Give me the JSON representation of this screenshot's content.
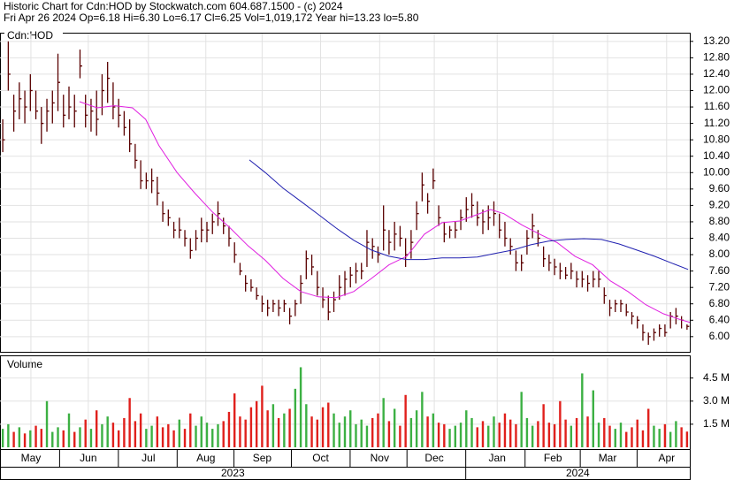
{
  "chart_data": {
    "type": "hlc",
    "title": "Historic Chart for Cdn:HOD by Stockwatch.com 604.687.1500 - (c) 2024",
    "subtitle": "Fri Apr 26 2024  Op=6.18  Hi=6.30  Lo=6.17  Cl=6.25  Vol=1,019,172  Year hi=13.23  lo=5.80",
    "symbol_label": "Cdn:HOD",
    "volume_label": "Volume",
    "bar_color": "#5a0000",
    "up_color": "#3cb043",
    "down_color": "#e0201c",
    "xlim": [
      -0.5,
      124.5
    ],
    "xticks": [
      {
        "value": 5.1,
        "label": "May"
      },
      {
        "value": 15.5,
        "label": "Jun"
      },
      {
        "value": 26.4,
        "label": "Jul"
      },
      {
        "value": 36.8,
        "label": "Aug"
      },
      {
        "value": 47,
        "label": "Sep"
      },
      {
        "value": 57.6,
        "label": "Oct"
      },
      {
        "value": 68.3,
        "label": "Nov"
      },
      {
        "value": 78.2,
        "label": "Dec"
      },
      {
        "value": 89.6,
        "label": "Jan"
      },
      {
        "value": 99.7,
        "label": "Feb"
      },
      {
        "value": 109.6,
        "label": "Mar"
      },
      {
        "value": 120.3,
        "label": "Apr"
      }
    ],
    "year_labels": [
      "2023",
      "2024"
    ],
    "ylim": [
      5.63,
      13.39
    ],
    "yticks": [
      {
        "value": 6,
        "label": "6.00"
      },
      {
        "value": 6.4,
        "label": "6.40"
      },
      {
        "value": 6.8,
        "label": "6.80"
      },
      {
        "value": 7.2,
        "label": "7.20"
      },
      {
        "value": 7.6,
        "label": "7.60"
      },
      {
        "value": 8,
        "label": "8.00"
      },
      {
        "value": 8.4,
        "label": "8.40"
      },
      {
        "value": 8.8,
        "label": "8.80"
      },
      {
        "value": 9.2,
        "label": "9.20"
      },
      {
        "value": 9.6,
        "label": "9.60"
      },
      {
        "value": 10,
        "label": "10.00"
      },
      {
        "value": 10.4,
        "label": "10.40"
      },
      {
        "value": 10.8,
        "label": "10.80"
      },
      {
        "value": 11.2,
        "label": "11.20"
      },
      {
        "value": 11.6,
        "label": "11.60"
      },
      {
        "value": 12,
        "label": "12.00"
      },
      {
        "value": 12.4,
        "label": "12.40"
      },
      {
        "value": 12.8,
        "label": "12.80"
      },
      {
        "value": 13.2,
        "label": "13.20"
      }
    ],
    "high": [
      11.3,
      13.2,
      11.9,
      12.2,
      12.0,
      12.4,
      12.0,
      11.6,
      11.8,
      12.0,
      12.9,
      11.9,
      12.1,
      11.9,
      13.0,
      11.9,
      11.8,
      12.0,
      12.4,
      12.7,
      12.2,
      11.8,
      11.5,
      11.3,
      10.7,
      10.3,
      10.0,
      10.1,
      9.9,
      9.3,
      9.1,
      8.8,
      8.9,
      8.6,
      8.4,
      8.6,
      8.9,
      8.8,
      9.0,
      9.3,
      8.9,
      8.7,
      8.3,
      7.8,
      7.5,
      7.4,
      7.2,
      7.0,
      6.9,
      6.9,
      6.9,
      6.9,
      6.7,
      6.9,
      7.5,
      8.1,
      8.0,
      7.6,
      7.2,
      7.0,
      7.1,
      7.5,
      7.6,
      7.7,
      7.8,
      7.8,
      8.6,
      8.4,
      8.2,
      9.2,
      8.6,
      8.8,
      8.7,
      8.4,
      8.6,
      9.3,
      10.0,
      9.5,
      10.1,
      9.2,
      8.8,
      8.7,
      8.8,
      9.1,
      9.4,
      9.5,
      9.3,
      9.1,
      9.2,
      9.3,
      9.0,
      8.8,
      8.4,
      8.1,
      8.0,
      8.6,
      9.0,
      8.6,
      8.2,
      8.0,
      7.9,
      7.8,
      7.7,
      7.8,
      7.6,
      7.6,
      7.5,
      7.6,
      7.6,
      7.2,
      6.9,
      6.9,
      6.9,
      6.8,
      6.6,
      6.5,
      6.3,
      6.1,
      6.2,
      6.3,
      6.3,
      6.6,
      6.7,
      6.5,
      6.3
    ],
    "low": [
      10.5,
      12.0,
      11.0,
      11.3,
      11.2,
      11.5,
      11.3,
      10.7,
      11.0,
      11.2,
      11.5,
      11.1,
      11.3,
      11.1,
      12.3,
      11.1,
      11.0,
      10.9,
      11.4,
      11.7,
      11.3,
      11.1,
      10.9,
      10.5,
      10.1,
      9.6,
      9.6,
      9.5,
      9.2,
      8.8,
      8.7,
      8.4,
      8.4,
      8.2,
      7.9,
      8.1,
      8.3,
      8.3,
      8.5,
      8.7,
      8.5,
      8.2,
      7.8,
      7.5,
      7.1,
      7.1,
      6.9,
      6.6,
      6.5,
      6.6,
      6.5,
      6.6,
      6.3,
      6.5,
      6.8,
      7.4,
      7.5,
      7.0,
      6.7,
      6.4,
      6.6,
      6.9,
      7.0,
      7.2,
      7.3,
      7.4,
      7.7,
      7.9,
      7.8,
      8.1,
      8.0,
      8.1,
      8.2,
      7.7,
      7.9,
      8.6,
      9.3,
      9.0,
      9.6,
      8.7,
      8.3,
      8.4,
      8.4,
      8.6,
      8.8,
      8.9,
      8.7,
      8.5,
      8.6,
      8.7,
      8.4,
      8.2,
      8.0,
      7.6,
      7.6,
      8.0,
      8.4,
      8.2,
      7.7,
      7.6,
      7.5,
      7.4,
      7.4,
      7.4,
      7.2,
      7.2,
      7.1,
      7.2,
      7.2,
      6.8,
      6.5,
      6.6,
      6.6,
      6.5,
      6.3,
      6.2,
      5.9,
      5.8,
      5.9,
      6.0,
      6.0,
      6.2,
      6.3,
      6.2,
      6.17
    ],
    "close": [
      10.8,
      12.4,
      11.5,
      11.8,
      11.6,
      12.0,
      11.5,
      11.2,
      11.5,
      11.7,
      12.2,
      11.4,
      11.6,
      11.5,
      12.6,
      11.4,
      11.5,
      11.3,
      12.0,
      12.3,
      11.6,
      11.4,
      11.1,
      10.7,
      10.3,
      9.8,
      9.8,
      9.8,
      9.5,
      9.0,
      8.9,
      8.6,
      8.6,
      8.4,
      8.1,
      8.4,
      8.6,
      8.6,
      8.8,
      9.0,
      8.7,
      8.4,
      8.0,
      7.6,
      7.3,
      7.2,
      7.0,
      6.8,
      6.7,
      6.8,
      6.7,
      6.8,
      6.5,
      6.8,
      7.3,
      7.9,
      7.7,
      7.2,
      6.9,
      6.6,
      6.9,
      7.2,
      7.4,
      7.5,
      7.6,
      7.6,
      8.3,
      8.2,
      8.0,
      8.6,
      8.3,
      8.5,
      8.4,
      8.0,
      8.3,
      9.0,
      9.7,
      9.3,
      9.8,
      8.9,
      8.5,
      8.6,
      8.6,
      8.9,
      9.1,
      9.2,
      8.9,
      8.8,
      8.9,
      9.0,
      8.6,
      8.4,
      8.2,
      7.8,
      7.8,
      8.4,
      8.7,
      8.4,
      7.9,
      7.8,
      7.7,
      7.6,
      7.5,
      7.6,
      7.4,
      7.4,
      7.3,
      7.4,
      7.4,
      7.0,
      6.7,
      6.8,
      6.8,
      6.6,
      6.5,
      6.4,
      6.1,
      6.0,
      6.1,
      6.2,
      6.1,
      6.5,
      6.5,
      6.4,
      6.25
    ],
    "moving_averages": [
      {
        "color": "#e020e0",
        "x": [
          13.9,
          17.1,
          20.3,
          23.5,
          25.9,
          28.3,
          31.6,
          34.8,
          38,
          41.2,
          44.4,
          47.6,
          50.8,
          54,
          57.2,
          60.4,
          63.6,
          66.8,
          70,
          73.2,
          76.4,
          79.6,
          82.8,
          86,
          88.4,
          90.8,
          94.1,
          97.3,
          100.5,
          103.7,
          106.9,
          110.1,
          113.3,
          116.5,
          119.7,
          122.9,
          124.5
        ],
        "values": [
          11.73,
          11.58,
          11.63,
          11.58,
          11.3,
          10.66,
          10.0,
          9.5,
          9.04,
          8.65,
          8.22,
          7.86,
          7.42,
          7.1,
          6.97,
          6.95,
          7.1,
          7.42,
          7.75,
          7.96,
          8.5,
          8.78,
          8.82,
          8.98,
          9.1,
          9.0,
          8.72,
          8.5,
          8.29,
          7.96,
          7.75,
          7.36,
          7.1,
          6.78,
          6.56,
          6.41,
          6.35
        ]
      },
      {
        "color": "#2020b0",
        "x": [
          44.7,
          47.6,
          50.8,
          54,
          57.2,
          60.4,
          63.6,
          66.8,
          70,
          73.2,
          76.4,
          79.6,
          82.8,
          86,
          89.2,
          92.4,
          95.7,
          98.9,
          102.1,
          105.3,
          108.5,
          111.7,
          114.9,
          118.1,
          121.3,
          124.2
        ],
        "values": [
          10.31,
          10.0,
          9.62,
          9.3,
          8.98,
          8.65,
          8.35,
          8.11,
          7.96,
          7.88,
          7.88,
          7.92,
          7.92,
          7.94,
          8.03,
          8.11,
          8.24,
          8.33,
          8.37,
          8.39,
          8.37,
          8.26,
          8.11,
          7.96,
          7.79,
          7.64
        ]
      }
    ],
    "volume": [
      1.2,
      1.5,
      1.0,
      1.3,
      0.9,
      1.1,
      1.4,
      1.2,
      3.0,
      1.0,
      1.3,
      1.1,
      2.2,
      1.0,
      1.3,
      1.8,
      1.2,
      2.4,
      1.5,
      2.0,
      1.6,
      1.1,
      1.9,
      3.2,
      1.7,
      2.2,
      1.2,
      1.4,
      2.0,
      1.3,
      1.5,
      1.1,
      1.8,
      1.2,
      2.2,
      1.4,
      2.0,
      1.6,
      1.2,
      1.5,
      1.7,
      2.3,
      3.5,
      2.0,
      1.8,
      2.6,
      3.0,
      4.0,
      2.4,
      2.8,
      1.9,
      2.2,
      2.5,
      3.8,
      5.2,
      2.8,
      2.0,
      1.8,
      2.6,
      2.9,
      2.2,
      1.6,
      2.0,
      2.4,
      1.5,
      1.8,
      1.4,
      1.9,
      2.2,
      3.2,
      1.7,
      2.5,
      1.4,
      3.4,
      1.9,
      2.4,
      3.6,
      2.0,
      2.2,
      1.6,
      1.5,
      1.2,
      1.4,
      1.6,
      2.4,
      1.9,
      1.3,
      1.7,
      1.4,
      2.0,
      1.6,
      2.2,
      1.8,
      1.5,
      3.6,
      1.9,
      1.4,
      1.7,
      2.8,
      1.6,
      1.5,
      3.0,
      1.8,
      1.4,
      1.9,
      4.8,
      2.0,
      3.7,
      1.6,
      1.9,
      1.4,
      1.2,
      1.6,
      1.0,
      1.3,
      1.8,
      1.1,
      2.5,
      1.4,
      1.2,
      1.5,
      1.0,
      1.7,
      1.3,
      1.02
    ],
    "vylim": [
      0,
      5.8
    ],
    "vyticks": [
      {
        "value": 1.5,
        "label": "1.5 M"
      },
      {
        "value": 3,
        "label": "3.0 M"
      },
      {
        "value": 4.5,
        "label": "4.5 M"
      }
    ],
    "grid": true
  }
}
